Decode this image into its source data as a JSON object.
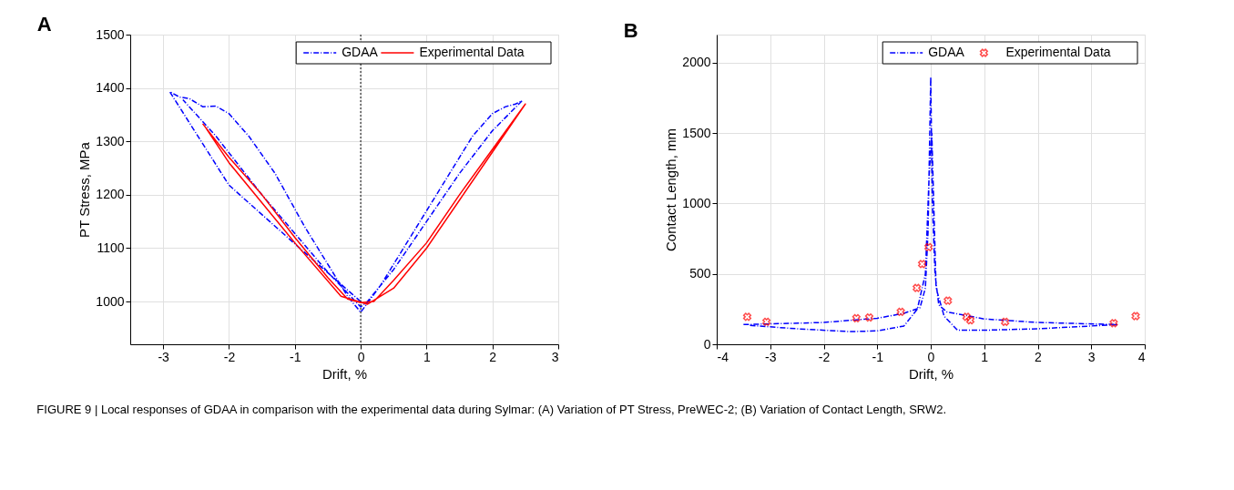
{
  "chart_data": [
    {
      "type": "line",
      "title": "A",
      "xlabel": "Drift, %",
      "ylabel": "PT Stress, MPa",
      "xlim": [
        -3.5,
        3
      ],
      "xticks": [
        -3,
        -2,
        -1,
        0,
        1,
        2,
        3
      ],
      "ylim": [
        920,
        1500
      ],
      "yticks": [
        1000,
        1100,
        1200,
        1300,
        1400,
        1500
      ],
      "grid": true,
      "legend": "top right",
      "ref_lines": [
        {
          "axis": "x",
          "value": 0,
          "color": "#000000",
          "line_style": "dotted"
        }
      ],
      "series": [
        {
          "name": "GDAA",
          "color": "#0000ff",
          "line_style": "dashed",
          "x": [
            0,
            -1,
            -2,
            -2.9,
            -2.75,
            -2.6,
            -2.4,
            -2.2,
            -2.0,
            -1.7,
            -1.3,
            -0.85,
            -0.5,
            -0.2,
            0,
            0.3,
            0.8,
            1.3,
            1.7,
            2.0,
            2.2,
            2.35,
            2.45,
            2.0,
            1.5,
            1.0,
            0.5,
            0.1,
            0,
            -0.5,
            -1.5,
            -2.2,
            -2.7
          ],
          "values": [
            1000,
            1108,
            1218,
            1393,
            1383,
            1380,
            1365,
            1366,
            1352,
            1310,
            1240,
            1140,
            1070,
            1010,
            980,
            1030,
            1130,
            1230,
            1310,
            1352,
            1365,
            1370,
            1376,
            1320,
            1240,
            1150,
            1060,
            1000,
            990,
            1055,
            1200,
            1310,
            1378
          ]
        },
        {
          "name": "Experimental Data",
          "color": "#ff0000",
          "line_style": "solid",
          "x": [
            -2.4,
            -2.0,
            -1.5,
            -1,
            -0.5,
            -0.2,
            0,
            0.2,
            0.5,
            1.0,
            1.5,
            2.0,
            2.5,
            2.0,
            1.5,
            1.0,
            0.5,
            0.1,
            -0.3,
            -1,
            -2,
            -2.35
          ],
          "values": [
            1333,
            1270,
            1200,
            1120,
            1045,
            1005,
            998,
            1000,
            1040,
            1110,
            1200,
            1285,
            1370,
            1280,
            1190,
            1100,
            1025,
            995,
            1010,
            1110,
            1260,
            1325
          ]
        }
      ],
      "annotations": [
        "FIGURE 9 | Local responses of GDAA in comparison with the experimental data during Sylmar: (A) Variation of PT Stress, PreWEC-2; (B) Variation of Contact Length, SRW2."
      ]
    },
    {
      "type": "line",
      "title": "B",
      "xlabel": "Drift, %",
      "ylabel": "Contact Length, mm",
      "xlim": [
        -4,
        4
      ],
      "xticks": [
        -4,
        -3,
        -2,
        -1,
        0,
        1,
        2,
        3,
        4
      ],
      "ylim": [
        0,
        2200
      ],
      "yticks": [
        0,
        500,
        1000,
        1500,
        2000
      ],
      "grid": true,
      "legend": "top right",
      "series": [
        {
          "name": "GDAA",
          "color": "#0000ff",
          "line_style": "dashed",
          "x": [
            -3.5,
            -2,
            -1,
            -0.5,
            -0.2,
            -0.1,
            -0.05,
            0,
            0.03,
            0.08,
            0.15,
            0.3,
            1,
            2,
            3.5,
            3,
            2,
            1,
            0.5,
            0.25,
            0.1,
            0.02,
            -0.03,
            -0.1,
            -0.25,
            -0.5,
            -1,
            -1.5,
            -2.5,
            -3.4
          ],
          "values": [
            140,
            155,
            185,
            220,
            260,
            400,
            800,
            1900,
            1000,
            500,
            280,
            230,
            180,
            155,
            140,
            130,
            110,
            100,
            100,
            200,
            400,
            1500,
            1200,
            500,
            250,
            130,
            95,
            90,
            110,
            135
          ]
        },
        {
          "name": "Experimental Data",
          "type": "scatter",
          "color": "#ff0000",
          "marker": "cross",
          "x": [
            -3.43,
            -3.07,
            -1.39,
            -1.15,
            -0.56,
            -0.26,
            -0.16,
            -0.04,
            0.32,
            0.67,
            0.74,
            1.39,
            3.42,
            3.83
          ],
          "values": [
            195,
            160,
            185,
            190,
            230,
            400,
            570,
            690,
            310,
            195,
            170,
            160,
            150,
            200
          ]
        }
      ]
    }
  ]
}
